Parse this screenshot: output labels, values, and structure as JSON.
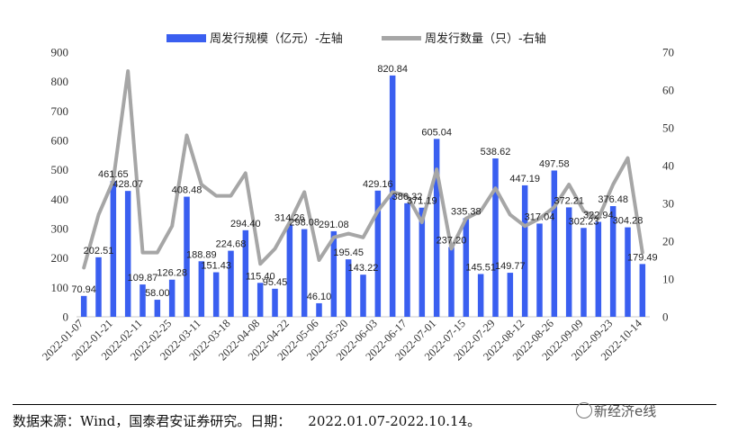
{
  "chart_data": {
    "type": "bar+line",
    "title": "",
    "legend": {
      "placement": "top-center",
      "entries": [
        "周发行规模（亿元）-左轴",
        "周发行数量（只）-右轴"
      ]
    },
    "left_axis": {
      "ylim": [
        0,
        900
      ],
      "ticks": [
        0,
        100,
        200,
        300,
        400,
        500,
        600,
        700,
        800,
        900
      ]
    },
    "right_axis": {
      "ylim": [
        0,
        70
      ],
      "ticks": [
        0,
        10,
        20,
        30,
        40,
        50,
        60,
        70
      ]
    },
    "x_tick_labels": [
      "2022-01-07",
      "2022-01-21",
      "2022-02-11",
      "2022-02-25",
      "2022-03-11",
      "2022-03-18",
      "2022-04-08",
      "2022-04-22",
      "2022-05-06",
      "2022-05-20",
      "2022-06-03",
      "2022-06-17",
      "2022-07-01",
      "2022-07-15",
      "2022-07-29",
      "2022-08-12",
      "2022-08-26",
      "2022-09-09",
      "2022-09-23",
      "2022-10-14"
    ],
    "grid": false,
    "series": [
      {
        "name": "周发行规模（亿元）-左轴",
        "kind": "bar",
        "axis": "left",
        "color": "#3a5ff0",
        "values": [
          70.94,
          202.51,
          461.65,
          428.07,
          109.87,
          58.0,
          126.28,
          408.48,
          188.89,
          151.43,
          224.68,
          294.4,
          115.4,
          95.45,
          314.26,
          298.08,
          46.1,
          291.08,
          195.45,
          143.22,
          429.16,
          820.84,
          386.32,
          371.19,
          605.04,
          237.2,
          335.38,
          145.51,
          538.62,
          149.77,
          447.19,
          317.04,
          497.58,
          372.21,
          302.23,
          322.94,
          376.48,
          304.28,
          179.49
        ],
        "labels": [
          "70.94",
          "202.51",
          "461.65",
          "428.07",
          "109.87",
          "58.00",
          "126.28",
          "408.48",
          "188.89",
          "151.43",
          "224.68",
          "294.40",
          "115.40",
          "95.45",
          "314.26",
          "298.08",
          "46.10",
          "291.08",
          "195.45",
          "143.22",
          "429.16",
          "820.84",
          "386.32",
          "371.19",
          "605.04",
          "237.20",
          "335.38",
          "145.51",
          "538.62",
          "149.77",
          "447.19",
          "317.04",
          "497.58",
          "372.21",
          "302.23",
          "322.94",
          "376.48",
          "304.28",
          "179.49"
        ]
      },
      {
        "name": "周发行数量（只）-右轴",
        "kind": "line",
        "axis": "right",
        "color": "#a6a6a6",
        "values": [
          13,
          27,
          36,
          65,
          17,
          17,
          24,
          48,
          35,
          32,
          32,
          38,
          14,
          18,
          25,
          33,
          15,
          21,
          22,
          21,
          28,
          33,
          32,
          25,
          39,
          18,
          26,
          28,
          34,
          27,
          24,
          26,
          29,
          35,
          28,
          26,
          35,
          42,
          17
        ]
      }
    ]
  },
  "footer": {
    "source": "数据来源：Wind，国泰君安证券研究。日期：    2022.01.07-2022.10.14。",
    "watermark": "新经济e线"
  }
}
